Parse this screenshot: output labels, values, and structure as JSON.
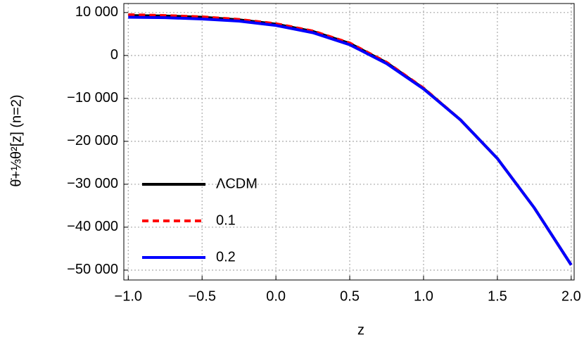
{
  "chart_data": {
    "type": "line",
    "xlabel": "z",
    "ylabel": "θ̇+⅓θ²[z] (n=2)",
    "x": [
      -1,
      -0.75,
      -0.5,
      -0.25,
      0,
      0.25,
      0.5,
      0.75,
      1,
      1.25,
      1.5,
      1.75,
      2
    ],
    "series": [
      {
        "name": "ΛCDM",
        "color": "#000000",
        "dash": false,
        "values": [
          9300,
          9200,
          8900,
          8300,
          7300,
          5600,
          2800,
          -1700,
          -7700,
          -15000,
          -24000,
          -35500,
          -48800
        ]
      },
      {
        "name": "0.1",
        "color": "#ff0000",
        "dash": true,
        "values": [
          9500,
          9300,
          9000,
          8400,
          7400,
          5700,
          2900,
          -1600,
          -7600,
          -15000,
          -24000,
          -35500,
          -48800
        ]
      },
      {
        "name": "0.2",
        "color": "#0000ff",
        "dash": false,
        "values": [
          8900,
          8800,
          8500,
          8000,
          7000,
          5300,
          2500,
          -1900,
          -7800,
          -15000,
          -24000,
          -35500,
          -48800
        ]
      }
    ],
    "xlim": [
      -1.03,
      2.02
    ],
    "ylim": [
      -52300,
      12100
    ],
    "xticks": [
      {
        "value": -1,
        "label": "−1.0"
      },
      {
        "value": -0.5,
        "label": "−0.5"
      },
      {
        "value": 0,
        "label": "0.0"
      },
      0.5,
      {
        "value": 1,
        "label": "1.0"
      },
      1.5,
      {
        "value": 2,
        "label": "2.0"
      }
    ],
    "yticks": [
      {
        "value": 10000,
        "label": "10 000"
      },
      0,
      {
        "value": -10000,
        "label": "−10 000"
      },
      {
        "value": -20000,
        "label": "−20 000"
      },
      {
        "value": -30000,
        "label": "−30 000"
      },
      {
        "value": -40000,
        "label": "−40 000"
      },
      {
        "value": -50000,
        "label": "−50 000"
      }
    ],
    "grid": true,
    "legend": "center left"
  }
}
